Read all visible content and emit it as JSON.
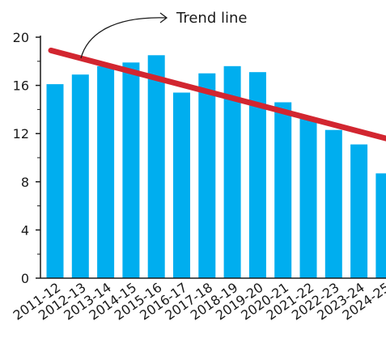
{
  "chart_data": {
    "type": "bar",
    "categories": [
      "2011-12",
      "2012-13",
      "2013-14",
      "2014-15",
      "2015-16",
      "2016-17",
      "2017-18",
      "2018-19",
      "2019-20",
      "2020-21",
      "2021-22",
      "2022-23",
      "2023-24",
      "2024-25"
    ],
    "values": [
      16.1,
      16.9,
      17.6,
      17.9,
      18.5,
      15.4,
      17.0,
      17.6,
      17.1,
      14.6,
      13.3,
      12.3,
      11.1,
      8.7
    ],
    "ylim": [
      0,
      20
    ],
    "yticks": [
      "0",
      "4",
      "8",
      "12",
      "16",
      "20"
    ],
    "trend_line": {
      "label": "Trend line",
      "start_value": 18.9,
      "end_value": 11.6
    },
    "title": "",
    "xlabel": "",
    "ylabel": "",
    "legend": "none",
    "grid": false,
    "colors": {
      "bar": "#00aeef",
      "trend": "#d22630",
      "axis": "#1a1a1a"
    }
  }
}
